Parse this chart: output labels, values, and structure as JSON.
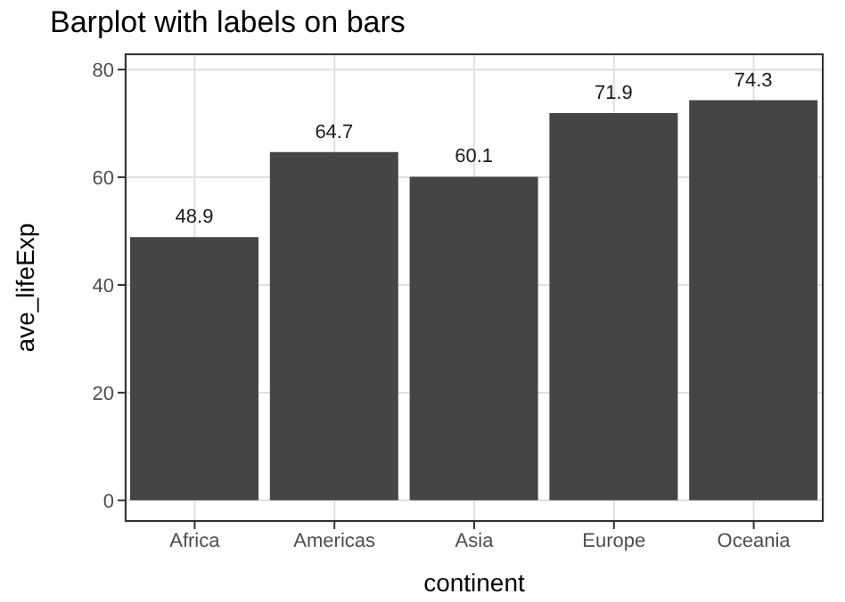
{
  "chart_data": {
    "type": "bar",
    "title": "Barplot with labels on bars",
    "xlabel": "continent",
    "ylabel": "ave_lifeExp",
    "categories": [
      "Africa",
      "Americas",
      "Asia",
      "Europe",
      "Oceania"
    ],
    "values": [
      48.9,
      64.7,
      60.1,
      71.9,
      74.3
    ],
    "color": "#454545",
    "ylim": [
      -4,
      83
    ],
    "yticks": [
      0,
      20,
      40,
      60,
      80
    ],
    "grid": true,
    "data_labels": true
  }
}
